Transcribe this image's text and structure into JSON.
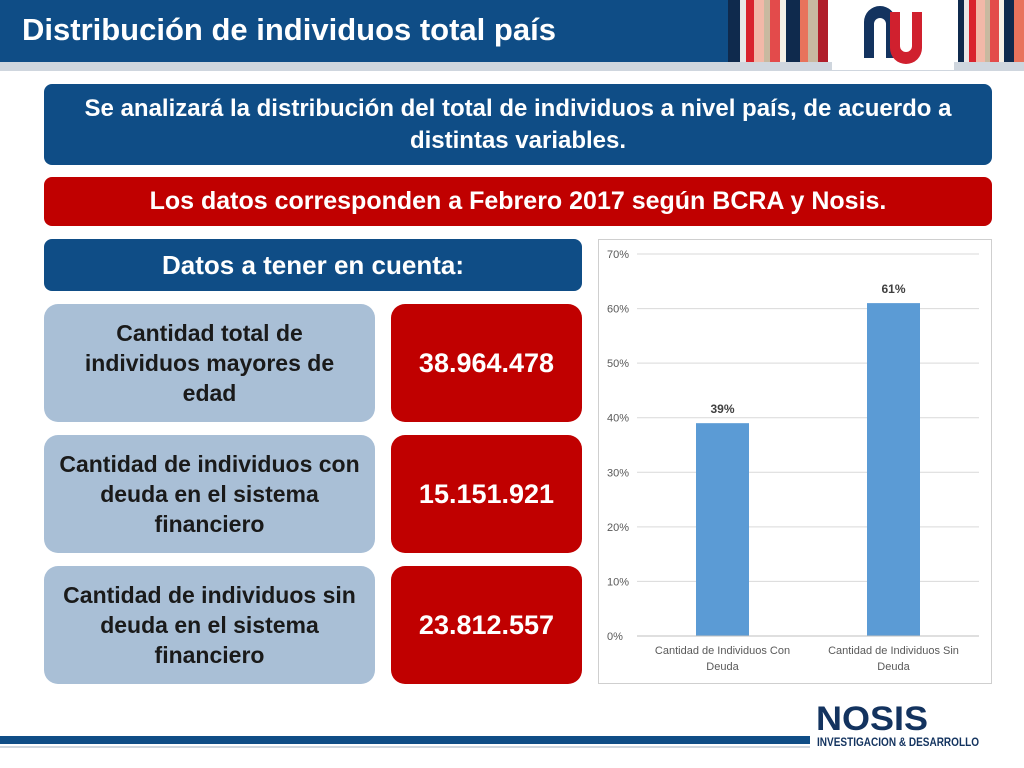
{
  "header": {
    "title": "Distribución de individuos total país"
  },
  "banners": {
    "intro": "Se analizará la distribución del total de individuos a nivel país, de acuerdo a distintas variables.",
    "source": "Los datos corresponden a Febrero 2017 según BCRA y Nosis.",
    "datos": "Datos a tener en cuenta:"
  },
  "stats": [
    {
      "label": "Cantidad total de individuos mayores de edad",
      "value": "38.964.478"
    },
    {
      "label": "Cantidad de individuos con deuda en el sistema financiero",
      "value": "15.151.921"
    },
    {
      "label": "Cantidad de individuos sin deuda en el sistema financiero",
      "value": "23.812.557"
    }
  ],
  "footer": {
    "brand": "NOSIS",
    "tagline": "INVESTIGACION & DESARROLLO"
  },
  "colors": {
    "navy": "#0f4d86",
    "red": "#c00000",
    "card_blue": "#a9bfd6",
    "bar": "#5b9bd5"
  },
  "chart_data": {
    "type": "bar",
    "categories": [
      [
        "Cantidad de Individuos Con",
        "Deuda"
      ],
      [
        "Cantidad de Individuos Sin",
        "Deuda"
      ]
    ],
    "values": [
      39,
      61
    ],
    "data_labels": [
      "39%",
      "61%"
    ],
    "ylim": [
      0,
      70
    ],
    "yticks": [
      0,
      10,
      20,
      30,
      40,
      50,
      60,
      70
    ],
    "ytick_labels": [
      "0%",
      "10%",
      "20%",
      "30%",
      "40%",
      "50%",
      "60%",
      "70%"
    ],
    "grid": true,
    "title": "",
    "xlabel": "",
    "ylabel": ""
  }
}
